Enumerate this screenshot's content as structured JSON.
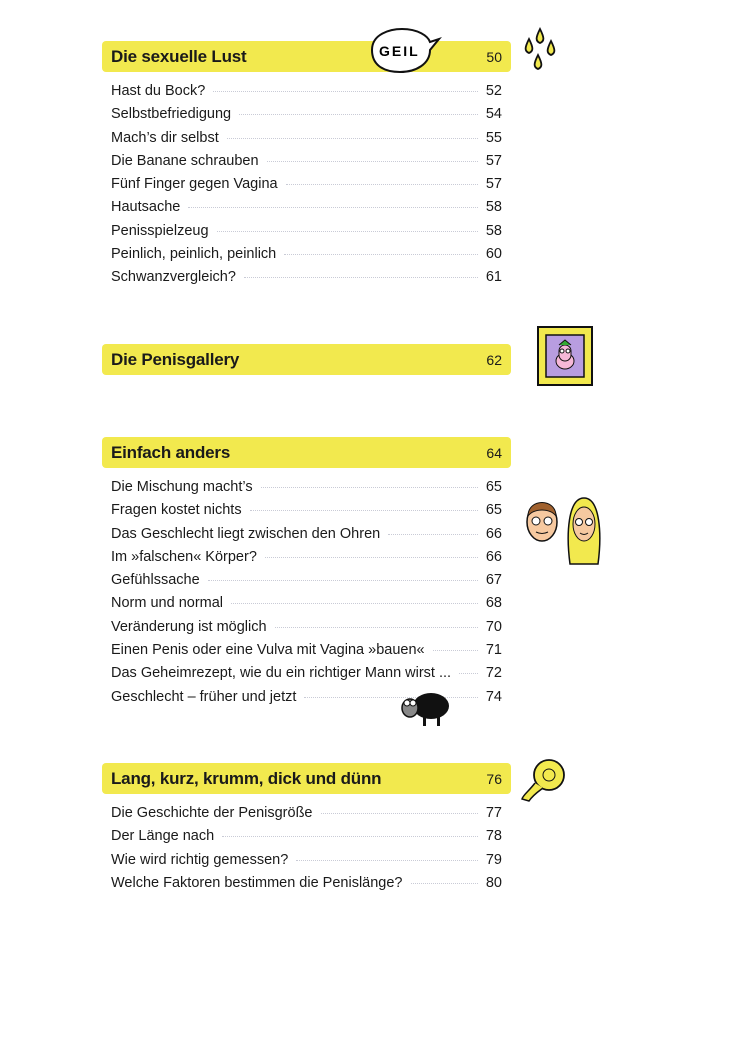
{
  "sections": [
    {
      "title": "Die sexuelle Lust",
      "page": "50",
      "bubble": "GEIL",
      "entries": [
        {
          "label": "Hast du Bock?",
          "page": "52"
        },
        {
          "label": "Selbstbefriedigung",
          "page": "54"
        },
        {
          "label": "Mach’s dir selbst",
          "page": "55"
        },
        {
          "label": "Die Banane schrauben",
          "page": "57"
        },
        {
          "label": "Fünf Finger gegen Vagina",
          "page": "57"
        },
        {
          "label": "Hautsache",
          "page": "58"
        },
        {
          "label": "Penisspielzeug",
          "page": "58"
        },
        {
          "label": "Peinlich, peinlich, peinlich",
          "page": "60"
        },
        {
          "label": "Schwanzvergleich?",
          "page": "61"
        }
      ]
    },
    {
      "title": "Die Penisgallery",
      "page": "62",
      "entries": []
    },
    {
      "title": "Einfach anders",
      "page": "64",
      "entries": [
        {
          "label": "Die Mischung macht’s",
          "page": "65"
        },
        {
          "label": "Fragen kostet nichts",
          "page": "65"
        },
        {
          "label": "Das Geschlecht liegt zwischen den Ohren",
          "page": "66"
        },
        {
          "label": "Im »falschen« Körper?",
          "page": "66"
        },
        {
          "label": "Gefühlssache",
          "page": "67"
        },
        {
          "label": "Norm und normal",
          "page": "68"
        },
        {
          "label": "Veränderung ist möglich",
          "page": "70"
        },
        {
          "label": "Einen Penis oder eine Vulva mit Vagina »bauen«",
          "page": "71"
        },
        {
          "label": "Das Geheimrezept, wie du ein richtiger Mann wirst ...",
          "page": "72"
        },
        {
          "label": "Geschlecht – früher und jetzt",
          "page": "74"
        }
      ]
    },
    {
      "title": "Lang, kurz, krumm, dick und dünn",
      "page": "76",
      "entries": [
        {
          "label": "Die Geschichte der Penisgröße",
          "page": "77"
        },
        {
          "label": "Der Länge nach",
          "page": "78"
        },
        {
          "label": "Wie wird richtig gemessen?",
          "page": "79"
        },
        {
          "label": "Welche Faktoren bestimmen die Penislänge?",
          "page": "80"
        }
      ]
    }
  ],
  "colors": {
    "highlight": "#f2e94e",
    "text": "#1a1a1a",
    "leader": "#c9cbd6"
  }
}
